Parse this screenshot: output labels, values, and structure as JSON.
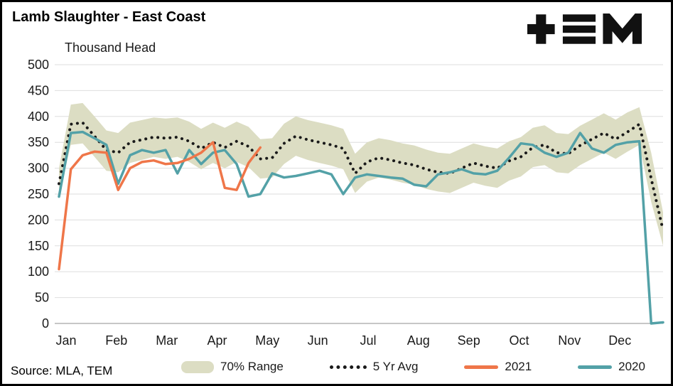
{
  "header": {
    "title": "Lamb Slaughter - East Coast",
    "subtitle": "Thousand Head"
  },
  "logo": {
    "name": "tem-logo",
    "text": "TEM",
    "color": "#111111"
  },
  "source": "Source: MLA, TEM",
  "legend": [
    {
      "label": "70% Range",
      "type": "band",
      "color": "#dcddc3"
    },
    {
      "label": "5 Yr Avg",
      "type": "dotted",
      "color": "#1a1a1a"
    },
    {
      "label": "2021",
      "type": "line",
      "color": "#ef7649"
    },
    {
      "label": "2020",
      "type": "line",
      "color": "#53a1a7"
    }
  ],
  "chart_data": {
    "type": "line",
    "title": "Lamb Slaughter - East Coast",
    "xlabel": "",
    "ylabel": "Thousand Head",
    "ylim": [
      0,
      500
    ],
    "ytick_step": 50,
    "x_unit": "week",
    "weeks": 52,
    "months": [
      "Jan",
      "Feb",
      "Mar",
      "Apr",
      "May",
      "Jun",
      "Jul",
      "Aug",
      "Sep",
      "Oct",
      "Nov",
      "Dec"
    ],
    "grid": true,
    "legend_position": "bottom",
    "series": [
      {
        "name": "70% Range",
        "type": "band",
        "color": "#dcddc3",
        "upper": [
          300,
          423,
          426,
          400,
          373,
          368,
          388,
          393,
          398,
          396,
          398,
          390,
          376,
          388,
          378,
          390,
          380,
          356,
          358,
          386,
          400,
          393,
          388,
          383,
          376,
          328,
          350,
          358,
          354,
          348,
          344,
          336,
          330,
          328,
          338,
          348,
          342,
          338,
          352,
          360,
          378,
          383,
          368,
          366,
          382,
          394,
          406,
          394,
          408,
          418,
          330,
          215
        ],
        "lower": [
          248,
          345,
          348,
          322,
          295,
          292,
          310,
          316,
          322,
          318,
          322,
          312,
          298,
          310,
          300,
          312,
          302,
          280,
          282,
          308,
          324,
          316,
          310,
          305,
          298,
          252,
          274,
          282,
          278,
          272,
          268,
          260,
          255,
          252,
          262,
          272,
          266,
          262,
          276,
          284,
          302,
          306,
          292,
          290,
          306,
          318,
          330,
          318,
          332,
          345,
          235,
          150
        ]
      },
      {
        "name": "5 Yr Avg",
        "type": "dotted",
        "color": "#1a1a1a",
        "values": [
          270,
          385,
          388,
          362,
          335,
          330,
          350,
          355,
          360,
          358,
          360,
          352,
          338,
          350,
          340,
          352,
          342,
          318,
          320,
          348,
          362,
          355,
          350,
          345,
          338,
          290,
          312,
          320,
          316,
          310,
          306,
          298,
          292,
          290,
          300,
          310,
          304,
          300,
          314,
          322,
          340,
          345,
          330,
          328,
          344,
          356,
          368,
          356,
          370,
          385,
          280,
          180
        ]
      },
      {
        "name": "2020",
        "type": "line",
        "color": "#53a1a7",
        "values": [
          245,
          368,
          370,
          358,
          345,
          270,
          325,
          335,
          330,
          335,
          290,
          335,
          308,
          330,
          335,
          308,
          245,
          250,
          290,
          282,
          285,
          290,
          295,
          288,
          250,
          282,
          288,
          285,
          282,
          280,
          268,
          265,
          288,
          292,
          298,
          290,
          288,
          295,
          320,
          348,
          345,
          330,
          322,
          330,
          368,
          338,
          330,
          345,
          350,
          352,
          0,
          2
        ]
      },
      {
        "name": "2021",
        "type": "line",
        "color": "#ef7649",
        "values": [
          105,
          298,
          325,
          332,
          330,
          258,
          300,
          312,
          315,
          308,
          310,
          318,
          330,
          350,
          262,
          258,
          310,
          340
        ]
      }
    ]
  }
}
